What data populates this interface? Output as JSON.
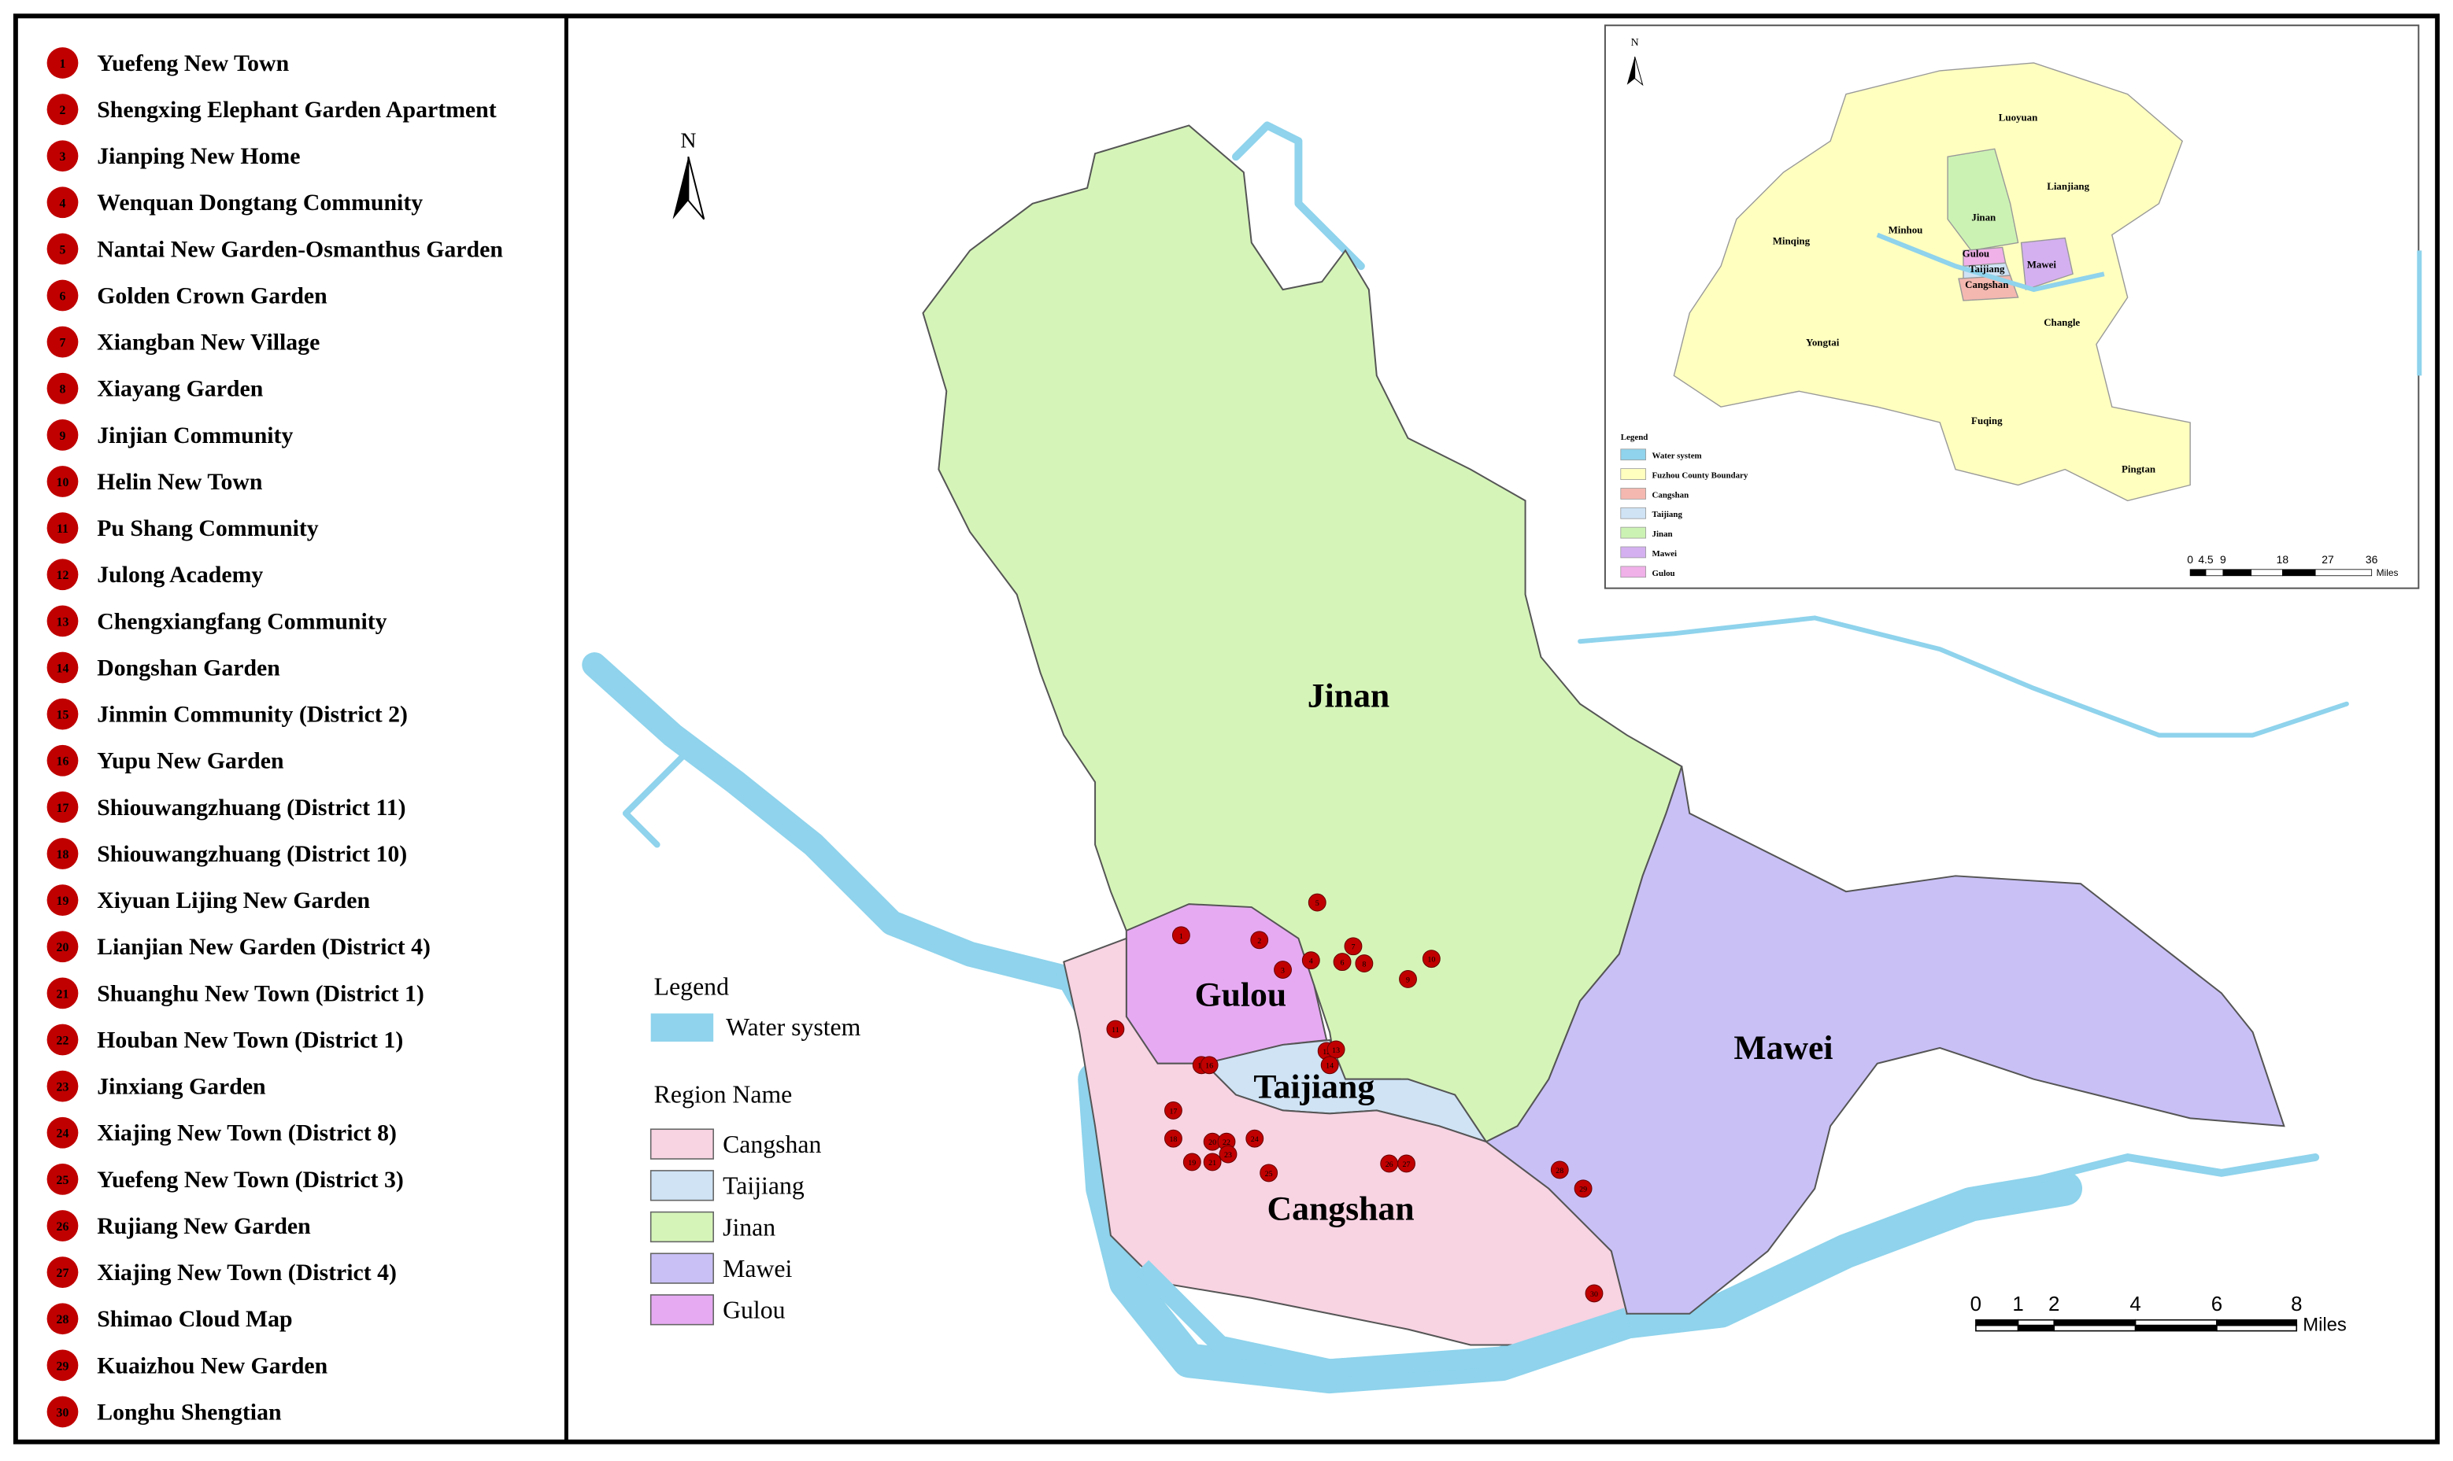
{
  "sites": [
    {
      "number": "1",
      "name": "Yuefeng New Town"
    },
    {
      "number": "2",
      "name": "Shengxing Elephant Garden Apartment"
    },
    {
      "number": "3",
      "name": "Jianping New Home"
    },
    {
      "number": "4",
      "name": "Wenquan Dongtang Community"
    },
    {
      "number": "5",
      "name": "Nantai New Garden-Osmanthus Garden"
    },
    {
      "number": "6",
      "name": "Golden Crown Garden"
    },
    {
      "number": "7",
      "name": "Xiangban New Village"
    },
    {
      "number": "8",
      "name": "Xiayang Garden"
    },
    {
      "number": "9",
      "name": "Jinjian Community"
    },
    {
      "number": "10",
      "name": "Helin New Town"
    },
    {
      "number": "11",
      "name": "Pu Shang Community"
    },
    {
      "number": "12",
      "name": "Julong Academy"
    },
    {
      "number": "13",
      "name": "Chengxiangfang Community"
    },
    {
      "number": "14",
      "name": "Dongshan Garden"
    },
    {
      "number": "15",
      "name": "Jinmin Community (District 2)"
    },
    {
      "number": "16",
      "name": "Yupu New Garden"
    },
    {
      "number": "17",
      "name": "Shiouwangzhuang (District 11)"
    },
    {
      "number": "18",
      "name": "Shiouwangzhuang (District 10)"
    },
    {
      "number": "19",
      "name": "Xiyuan Lijing New Garden"
    },
    {
      "number": "20",
      "name": "Lianjian New Garden (District 4)"
    },
    {
      "number": "21",
      "name": "Shuanghu New Town (District 1)"
    },
    {
      "number": "22",
      "name": "Houban New Town (District 1)"
    },
    {
      "number": "23",
      "name": "Jinxiang Garden"
    },
    {
      "number": "24",
      "name": "Xiajing New Town (District 8)"
    },
    {
      "number": "25",
      "name": "Yuefeng New Town (District 3)"
    },
    {
      "number": "26",
      "name": "Rujiang New Garden"
    },
    {
      "number": "27",
      "name": "Xiajing New Town (District 4)"
    },
    {
      "number": "28",
      "name": "Shimao Cloud Map"
    },
    {
      "number": "29",
      "name": "Kuaizhou New Garden"
    },
    {
      "number": "30",
      "name": "Longhu Shengtian"
    }
  ],
  "map": {
    "regions": [
      "Jinan",
      "Gulou",
      "Taijiang",
      "Cangshan",
      "Mawei"
    ],
    "north": "N"
  },
  "legend": {
    "title": "Legend",
    "water": "Water system",
    "region_title": "Region Name",
    "regions": [
      "Cangshan",
      "Taijiang",
      "Jinan",
      "Mawei",
      "Gulou"
    ]
  },
  "scale": {
    "labels": [
      "0",
      "1",
      "2",
      "4",
      "6",
      "8"
    ],
    "unit": "Miles"
  },
  "inset": {
    "north": "N",
    "labels": [
      "Luoyuan",
      "Lianjiang",
      "Jinan",
      "Minqing",
      "Minhou",
      "Gulou",
      "Taijiang",
      "Cangshan",
      "Mawei",
      "Yongtai",
      "Changle",
      "Fuqing",
      "Pingtan"
    ],
    "legend": {
      "title": "Legend",
      "items": [
        "Water system",
        "Fuzhou County Boundary",
        "Cangshan",
        "Taijiang",
        "Jinan",
        "Mawei",
        "Gulou"
      ]
    },
    "scale": {
      "labels": [
        "0",
        "4.5",
        "9",
        "18",
        "27",
        "36"
      ],
      "unit": "Miles"
    }
  }
}
